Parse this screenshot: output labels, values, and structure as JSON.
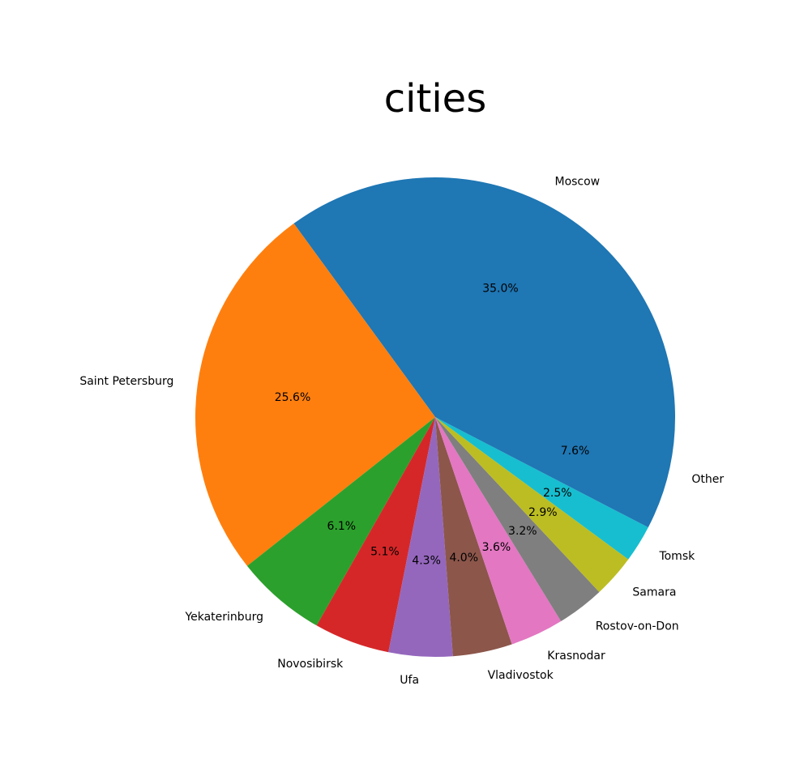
{
  "chart_data": {
    "type": "pie",
    "title": "cities",
    "categories": [
      "Moscow",
      "Saint Petersburg",
      "Yekaterinburg",
      "Novosibirsk",
      "Ufa",
      "Vladivostok",
      "Krasnodar",
      "Rostov-on-Don",
      "Samara",
      "Tomsk",
      "Other"
    ],
    "values": [
      35.0,
      25.6,
      6.1,
      5.1,
      4.3,
      4.0,
      3.6,
      3.2,
      2.9,
      2.5,
      7.6
    ],
    "value_labels": [
      "35.0%",
      "25.6%",
      "6.1%",
      "5.1%",
      "4.3%",
      "4.0%",
      "3.6%",
      "3.2%",
      "2.9%",
      "2.5%",
      "7.6%"
    ],
    "colors": [
      "#1f77b4",
      "#ff7f0e",
      "#2ca02c",
      "#d62728",
      "#9467bd",
      "#8c564b",
      "#e377c2",
      "#7f7f7f",
      "#bcbd22",
      "#17becf",
      "#1f77b4"
    ],
    "start_angle_deg": 0,
    "direction": "counterclockwise",
    "legend": "none"
  }
}
